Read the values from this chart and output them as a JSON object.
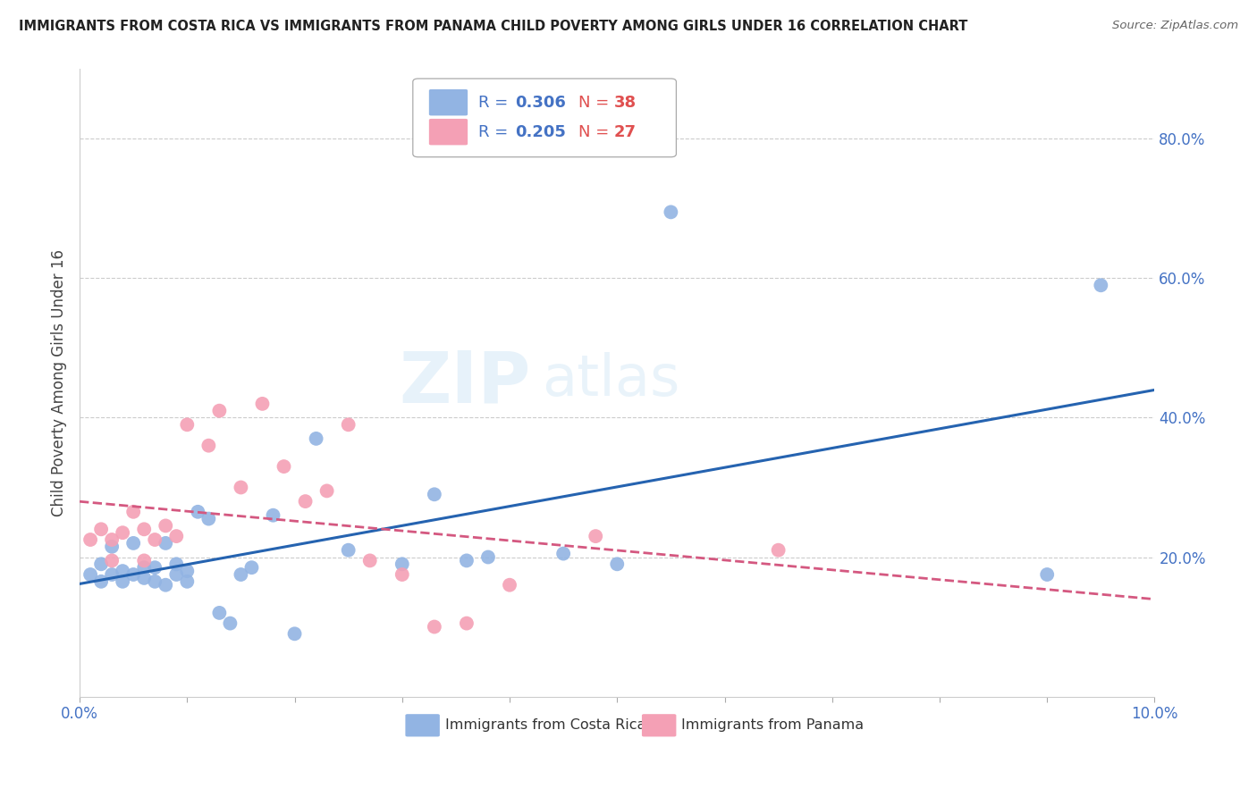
{
  "title": "IMMIGRANTS FROM COSTA RICA VS IMMIGRANTS FROM PANAMA CHILD POVERTY AMONG GIRLS UNDER 16 CORRELATION CHART",
  "source": "Source: ZipAtlas.com",
  "ylabel": "Child Poverty Among Girls Under 16",
  "xlim": [
    0.0,
    0.1
  ],
  "ylim": [
    0.0,
    0.9
  ],
  "ytick_values": [
    0.0,
    0.2,
    0.4,
    0.6,
    0.8
  ],
  "series1_color": "#92b4e3",
  "series2_color": "#f4a0b5",
  "series1_line_color": "#2563b0",
  "series2_line_color": "#d45880",
  "costa_rica_x": [
    0.001,
    0.002,
    0.002,
    0.003,
    0.003,
    0.004,
    0.004,
    0.005,
    0.005,
    0.006,
    0.006,
    0.007,
    0.007,
    0.008,
    0.008,
    0.009,
    0.009,
    0.01,
    0.01,
    0.011,
    0.012,
    0.013,
    0.014,
    0.015,
    0.016,
    0.018,
    0.02,
    0.022,
    0.025,
    0.03,
    0.033,
    0.036,
    0.038,
    0.045,
    0.05,
    0.055,
    0.09,
    0.095
  ],
  "costa_rica_y": [
    0.175,
    0.19,
    0.165,
    0.215,
    0.175,
    0.18,
    0.165,
    0.22,
    0.175,
    0.185,
    0.17,
    0.165,
    0.185,
    0.22,
    0.16,
    0.175,
    0.19,
    0.165,
    0.18,
    0.265,
    0.255,
    0.12,
    0.105,
    0.175,
    0.185,
    0.26,
    0.09,
    0.37,
    0.21,
    0.19,
    0.29,
    0.195,
    0.2,
    0.205,
    0.19,
    0.695,
    0.175,
    0.59
  ],
  "panama_x": [
    0.001,
    0.002,
    0.003,
    0.003,
    0.004,
    0.005,
    0.006,
    0.006,
    0.007,
    0.008,
    0.009,
    0.01,
    0.012,
    0.013,
    0.015,
    0.017,
    0.019,
    0.021,
    0.023,
    0.025,
    0.027,
    0.03,
    0.033,
    0.036,
    0.04,
    0.048,
    0.065
  ],
  "panama_y": [
    0.225,
    0.24,
    0.225,
    0.195,
    0.235,
    0.265,
    0.24,
    0.195,
    0.225,
    0.245,
    0.23,
    0.39,
    0.36,
    0.41,
    0.3,
    0.42,
    0.33,
    0.28,
    0.295,
    0.39,
    0.195,
    0.175,
    0.1,
    0.105,
    0.16,
    0.23,
    0.21
  ],
  "legend_R1": "R = 0.306",
  "legend_N1": "N = 38",
  "legend_R2": "R = 0.205",
  "legend_N2": "N = 27",
  "blue_text_color": "#4472C4",
  "red_text_color": "#e05050",
  "axis_color": "#4472C4"
}
